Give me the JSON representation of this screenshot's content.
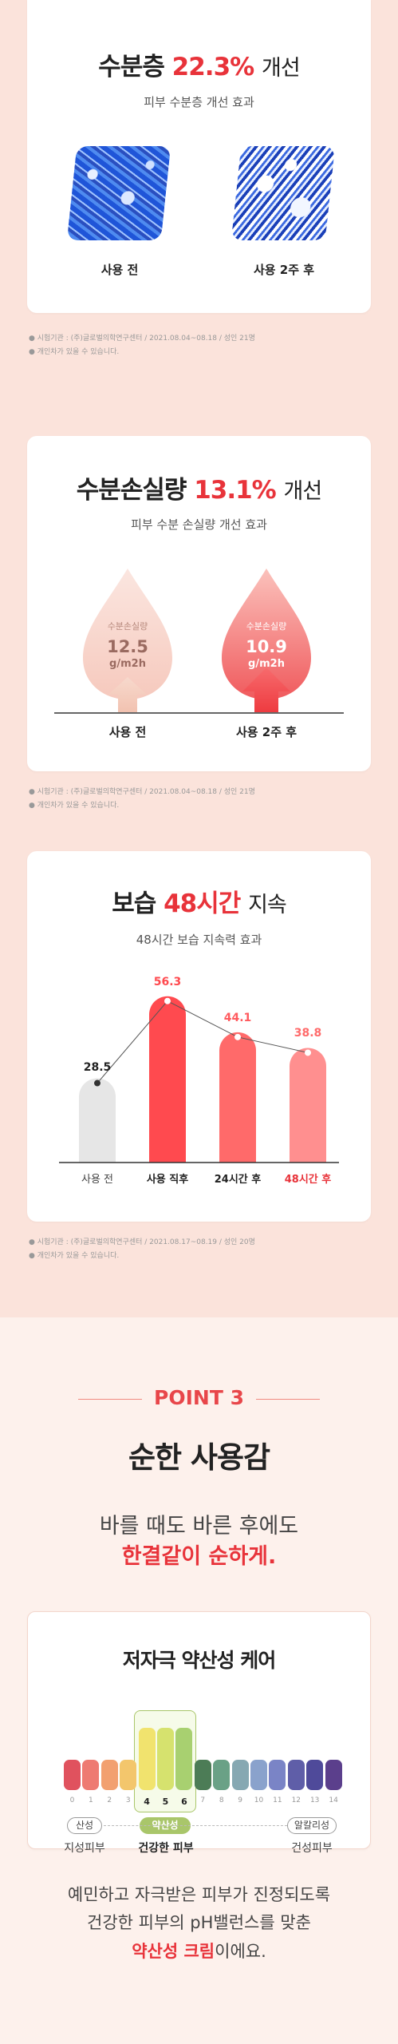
{
  "section1": {
    "title_main": "수분층",
    "title_value": "22.3%",
    "title_suffix": "개선",
    "subtitle": "피부 수분층 개선 효과",
    "before_label": "사용 전",
    "after_label": "사용 2주 후",
    "note1": "● 시험기관 : (주)글로벌의학연구센터 / 2021.08.04~08.18 / 성인 21명",
    "note2": "● 개인차가 있을 수 있습니다."
  },
  "section2": {
    "title_main": "수분손실량",
    "title_value": "13.1%",
    "title_suffix": "개선",
    "subtitle": "피부 수분 손실량 개선 효과",
    "drop_label": "수분손실량",
    "unit": "g/m2h",
    "before_value": "12.5",
    "after_value": "10.9",
    "before_label": "사용 전",
    "after_label": "사용 2주 후",
    "note1": "● 시험기관 : (주)글로벌의학연구센터 / 2021.08.04~08.18 / 성인 21명",
    "note2": "● 개인차가 있을 수 있습니다."
  },
  "section3": {
    "title_main": "보습",
    "title_value": "48시간",
    "title_suffix": "지속",
    "subtitle": "48시간 보습 지속력 효과",
    "note1": "● 시험기관 : (주)글로벌의학연구센터 / 2021.08.17~08.19 / 성인 20명",
    "note2": "● 개인차가 있을 수 있습니다."
  },
  "chart_data": {
    "type": "bar",
    "title": "",
    "categories": [
      "사용 전",
      "사용 직후",
      "24시간 후",
      "48시간 후"
    ],
    "values": [
      28.5,
      56.3,
      44.1,
      38.8
    ],
    "value_labels": [
      "28.5",
      "56.3",
      "44.1",
      "38.8"
    ],
    "ylim": [
      0,
      60
    ],
    "grid": false,
    "colors": [
      "#e6e6e6",
      "#ff4a4f",
      "#ff6a6a",
      "#ff8f8f"
    ],
    "has_trend_line": true
  },
  "point3": {
    "point_label": "POINT 3",
    "title": "순한 사용감",
    "line1": "바를 때도 바른 후에도",
    "line2": "한결같이 순하게.",
    "card_title": "저자극 약산성 케어",
    "ph_numbers": [
      "0",
      "1",
      "2",
      "3",
      "4",
      "5",
      "6",
      "7",
      "8",
      "9",
      "10",
      "11",
      "12",
      "13",
      "14"
    ],
    "ph_colors": [
      "#e0525e",
      "#ee7a72",
      "#f2a070",
      "#f3c66c",
      "#f1e36e",
      "#d6e26e",
      "#a8d070",
      "#4c7c56",
      "#6aa186",
      "#86a8b2",
      "#8aa2cc",
      "#7a84c6",
      "#5f5ea8",
      "#4f4a9a",
      "#5b3f8c"
    ],
    "pill_acid": "산성",
    "pill_weak": "약산성",
    "pill_alk": "알칼리성",
    "sub_oily": "지성피부",
    "sub_healthy": "건강한 피부",
    "sub_dry": "건성피부",
    "final1": "예민하고 자극받은 피부가 진정되도록",
    "final2": "건강한 피부의 pH밸런스를 맞춘",
    "final3_hl": "약산성 크림",
    "final3_rest": "이에요."
  }
}
